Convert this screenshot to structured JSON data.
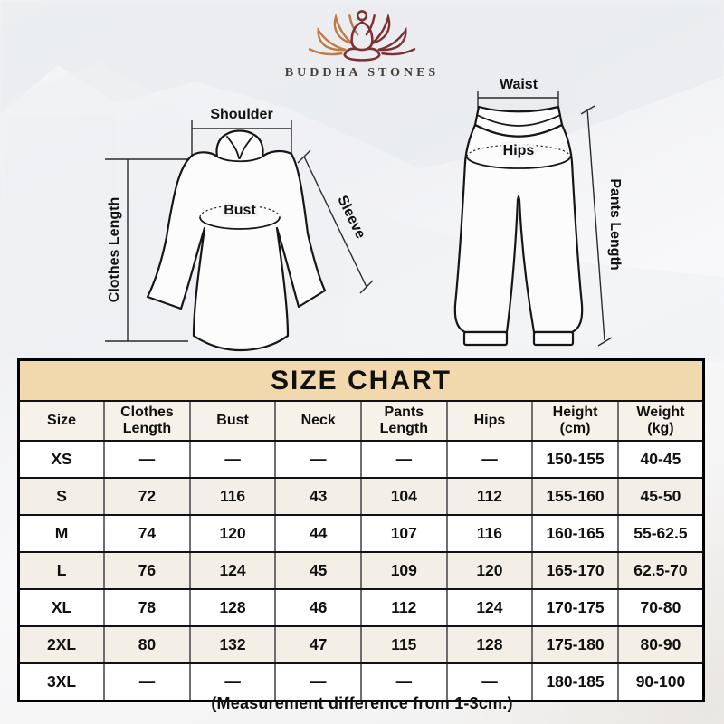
{
  "brand": {
    "name": "BUDDHA STONES",
    "logo_icon": "lotus-meditation-logo",
    "logo_left_color": "#c07a4a",
    "logo_right_color": "#7c3030"
  },
  "diagrams": {
    "top_garment": {
      "shoulder": "Shoulder",
      "clothes_length": "Clothes Length",
      "bust": "Bust",
      "sleeve": "Sleeve"
    },
    "pants": {
      "waist": "Waist",
      "hips": "Hips",
      "pants_length": "Pants Length"
    }
  },
  "size_chart": {
    "title": "SIZE CHART",
    "columns": [
      "Size",
      "Clothes Length",
      "Bust",
      "Neck",
      "Pants Length",
      "Hips",
      "Height (cm)",
      "Weight (kg)"
    ],
    "rows": [
      [
        "XS",
        "—",
        "—",
        "—",
        "—",
        "—",
        "150-155",
        "40-45"
      ],
      [
        "S",
        "72",
        "116",
        "43",
        "104",
        "112",
        "155-160",
        "45-50"
      ],
      [
        "M",
        "74",
        "120",
        "44",
        "107",
        "116",
        "160-165",
        "55-62.5"
      ],
      [
        "L",
        "76",
        "124",
        "45",
        "109",
        "120",
        "165-170",
        "62.5-70"
      ],
      [
        "XL",
        "78",
        "128",
        "46",
        "112",
        "124",
        "170-175",
        "70-80"
      ],
      [
        "2XL",
        "80",
        "132",
        "47",
        "115",
        "128",
        "175-180",
        "80-90"
      ],
      [
        "3XL",
        "—",
        "—",
        "—",
        "—",
        "—",
        "180-185",
        "90-100"
      ]
    ]
  },
  "footnote": "(Measurement difference from 1-3cm.)",
  "colors": {
    "banner_bg": "#f1d9ad",
    "banner_text": "#8b7342",
    "header_row_bg": "#f6f2ea",
    "alt_row_bg": "#f3efe7",
    "table_border": "#000000",
    "grid_vertical": "#6e6e6e"
  }
}
